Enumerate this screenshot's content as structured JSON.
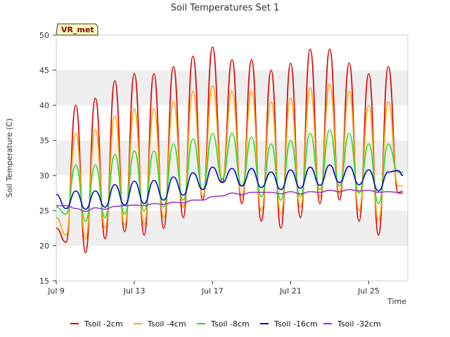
{
  "chart_data": {
    "type": "line",
    "title": "Soil Temperatures Set 1",
    "xlabel": "Time",
    "ylabel": "Soil Temperature (C)",
    "badge": "VR_met",
    "xlim": [
      "2023-07-09",
      "2023-07-27"
    ],
    "ylim": [
      15,
      50
    ],
    "y_ticks": [
      15,
      20,
      25,
      30,
      35,
      40,
      45,
      50
    ],
    "x_ticks": [
      {
        "date": "2023-07-09",
        "label": "Jul 9"
      },
      {
        "date": "2023-07-13",
        "label": "Jul 13"
      },
      {
        "date": "2023-07-17",
        "label": "Jul 17"
      },
      {
        "date": "2023-07-21",
        "label": "Jul 21"
      },
      {
        "date": "2023-07-25",
        "label": "Jul 25"
      }
    ],
    "grid": "horizontal bands",
    "legend_position": "bottom",
    "series": [
      {
        "name": "Tsoil -2cm",
        "color": "#e00000",
        "x": [
          "Jul 9 00:00",
          "Jul 9 12:00",
          "Jul 10 00:00",
          "Jul 10 12:00",
          "Jul 11 00:00",
          "Jul 11 12:00",
          "Jul 12 00:00",
          "Jul 12 12:00",
          "Jul 13 00:00",
          "Jul 13 12:00",
          "Jul 14 00:00",
          "Jul 14 12:00",
          "Jul 15 00:00",
          "Jul 15 12:00",
          "Jul 16 00:00",
          "Jul 16 12:00",
          "Jul 17 00:00",
          "Jul 17 12:00",
          "Jul 18 00:00",
          "Jul 18 12:00",
          "Jul 19 00:00",
          "Jul 19 12:00",
          "Jul 20 00:00",
          "Jul 20 12:00",
          "Jul 21 00:00",
          "Jul 21 12:00",
          "Jul 22 00:00",
          "Jul 22 12:00",
          "Jul 23 00:00",
          "Jul 23 12:00",
          "Jul 24 00:00",
          "Jul 24 12:00",
          "Jul 25 00:00",
          "Jul 25 12:00",
          "Jul 26 00:00",
          "Jul 26 12:00",
          "Jul 26 18:00"
        ],
        "values": [
          22.5,
          20.5,
          40.0,
          19.0,
          41.0,
          21.0,
          43.5,
          22.0,
          44.5,
          21.5,
          44.5,
          22.5,
          45.5,
          24.0,
          47.0,
          26.5,
          48.3,
          29.0,
          46.5,
          26.0,
          46.5,
          23.5,
          45.0,
          22.5,
          46.0,
          24.0,
          48.0,
          26.0,
          48.0,
          26.5,
          46.0,
          23.5,
          44.5,
          21.5,
          45.5,
          27.5,
          27.5
        ]
      },
      {
        "name": "Tsoil -4cm",
        "color": "#ffa500",
        "x": [
          "Jul 9 00:00",
          "Jul 9 12:00",
          "Jul 10 00:00",
          "Jul 10 12:00",
          "Jul 11 00:00",
          "Jul 11 12:00",
          "Jul 12 00:00",
          "Jul 12 12:00",
          "Jul 13 00:00",
          "Jul 13 12:00",
          "Jul 14 00:00",
          "Jul 14 12:00",
          "Jul 15 00:00",
          "Jul 15 12:00",
          "Jul 16 00:00",
          "Jul 16 12:00",
          "Jul 17 00:00",
          "Jul 17 12:00",
          "Jul 18 00:00",
          "Jul 18 12:00",
          "Jul 19 00:00",
          "Jul 19 12:00",
          "Jul 20 00:00",
          "Jul 20 12:00",
          "Jul 21 00:00",
          "Jul 21 12:00",
          "Jul 22 00:00",
          "Jul 22 12:00",
          "Jul 23 00:00",
          "Jul 23 12:00",
          "Jul 24 00:00",
          "Jul 24 12:00",
          "Jul 25 00:00",
          "Jul 25 12:00",
          "Jul 26 00:00",
          "Jul 26 12:00",
          "Jul 26 18:00"
        ],
        "values": [
          24.0,
          21.5,
          36.0,
          21.0,
          36.5,
          22.5,
          38.5,
          23.0,
          39.5,
          23.0,
          39.5,
          24.0,
          40.5,
          25.5,
          42.0,
          27.0,
          42.8,
          29.5,
          42.0,
          27.0,
          42.0,
          25.0,
          40.5,
          24.5,
          41.0,
          25.5,
          42.5,
          27.0,
          43.0,
          27.5,
          42.0,
          25.0,
          40.0,
          23.5,
          40.5,
          28.5,
          28.5
        ]
      },
      {
        "name": "Tsoil -8cm",
        "color": "#22dd22",
        "x": [
          "Jul 9 00:00",
          "Jul 9 12:00",
          "Jul 10 00:00",
          "Jul 10 12:00",
          "Jul 11 00:00",
          "Jul 11 12:00",
          "Jul 12 00:00",
          "Jul 12 12:00",
          "Jul 13 00:00",
          "Jul 13 12:00",
          "Jul 14 00:00",
          "Jul 14 12:00",
          "Jul 15 00:00",
          "Jul 15 12:00",
          "Jul 16 00:00",
          "Jul 16 12:00",
          "Jul 17 00:00",
          "Jul 17 12:00",
          "Jul 18 00:00",
          "Jul 18 12:00",
          "Jul 19 00:00",
          "Jul 19 12:00",
          "Jul 20 00:00",
          "Jul 20 12:00",
          "Jul 21 00:00",
          "Jul 21 12:00",
          "Jul 22 00:00",
          "Jul 22 12:00",
          "Jul 23 00:00",
          "Jul 23 12:00",
          "Jul 24 00:00",
          "Jul 24 12:00",
          "Jul 25 00:00",
          "Jul 25 12:00",
          "Jul 26 00:00",
          "Jul 26 12:00",
          "Jul 26 18:00"
        ],
        "values": [
          25.5,
          24.5,
          31.5,
          23.5,
          31.5,
          24.0,
          33.0,
          24.5,
          33.5,
          25.0,
          33.5,
          25.5,
          34.5,
          26.5,
          35.2,
          28.0,
          36.0,
          29.5,
          36.0,
          28.5,
          35.5,
          27.0,
          34.5,
          26.5,
          35.0,
          27.0,
          36.0,
          28.0,
          36.5,
          28.5,
          36.0,
          27.5,
          34.5,
          26.0,
          34.5,
          30.5,
          30.5
        ]
      },
      {
        "name": "Tsoil -16cm",
        "color": "#0000cc",
        "x": [
          "Jul 9 00:00",
          "Jul 9 12:00",
          "Jul 10 00:00",
          "Jul 10 12:00",
          "Jul 11 00:00",
          "Jul 11 12:00",
          "Jul 12 00:00",
          "Jul 12 12:00",
          "Jul 13 00:00",
          "Jul 13 12:00",
          "Jul 14 00:00",
          "Jul 14 12:00",
          "Jul 15 00:00",
          "Jul 15 12:00",
          "Jul 16 00:00",
          "Jul 16 12:00",
          "Jul 17 00:00",
          "Jul 17 12:00",
          "Jul 18 00:00",
          "Jul 18 12:00",
          "Jul 19 00:00",
          "Jul 19 12:00",
          "Jul 20 00:00",
          "Jul 20 12:00",
          "Jul 21 00:00",
          "Jul 21 12:00",
          "Jul 22 00:00",
          "Jul 22 12:00",
          "Jul 23 00:00",
          "Jul 23 12:00",
          "Jul 24 00:00",
          "Jul 24 12:00",
          "Jul 25 00:00",
          "Jul 25 12:00",
          "Jul 26 00:00",
          "Jul 26 12:00",
          "Jul 26 18:00"
        ],
        "values": [
          27.3,
          25.3,
          27.8,
          25.2,
          27.8,
          25.5,
          28.7,
          25.8,
          29.2,
          26.0,
          29.3,
          26.5,
          29.8,
          27.2,
          30.4,
          28.0,
          31.2,
          29.0,
          31.0,
          28.5,
          31.0,
          28.3,
          30.5,
          28.0,
          30.8,
          28.2,
          31.2,
          28.6,
          31.5,
          29.0,
          31.3,
          28.7,
          30.8,
          27.8,
          30.5,
          30.7,
          30.0
        ]
      },
      {
        "name": "Tsoil -32cm",
        "color": "#9933cc",
        "x": [
          "Jul 9 00:00",
          "Jul 9 12:00",
          "Jul 10 00:00",
          "Jul 10 12:00",
          "Jul 11 00:00",
          "Jul 11 12:00",
          "Jul 12 00:00",
          "Jul 12 12:00",
          "Jul 13 00:00",
          "Jul 13 12:00",
          "Jul 14 00:00",
          "Jul 14 12:00",
          "Jul 15 00:00",
          "Jul 15 12:00",
          "Jul 16 00:00",
          "Jul 16 12:00",
          "Jul 17 00:00",
          "Jul 17 12:00",
          "Jul 18 00:00",
          "Jul 18 12:00",
          "Jul 19 00:00",
          "Jul 19 12:00",
          "Jul 20 00:00",
          "Jul 20 12:00",
          "Jul 21 00:00",
          "Jul 21 12:00",
          "Jul 22 00:00",
          "Jul 22 12:00",
          "Jul 23 00:00",
          "Jul 23 12:00",
          "Jul 24 00:00",
          "Jul 24 12:00",
          "Jul 25 00:00",
          "Jul 25 12:00",
          "Jul 26 00:00",
          "Jul 26 12:00",
          "Jul 26 18:00"
        ],
        "values": [
          25.7,
          25.7,
          25.3,
          24.9,
          25.4,
          25.2,
          25.6,
          25.7,
          25.8,
          25.7,
          26.0,
          25.9,
          26.2,
          26.1,
          26.5,
          26.5,
          27.0,
          27.1,
          27.5,
          27.3,
          27.6,
          27.6,
          27.6,
          27.4,
          27.7,
          27.4,
          27.7,
          27.6,
          27.9,
          27.7,
          28.0,
          27.8,
          27.9,
          27.6,
          27.7,
          27.6,
          27.8
        ]
      }
    ]
  }
}
